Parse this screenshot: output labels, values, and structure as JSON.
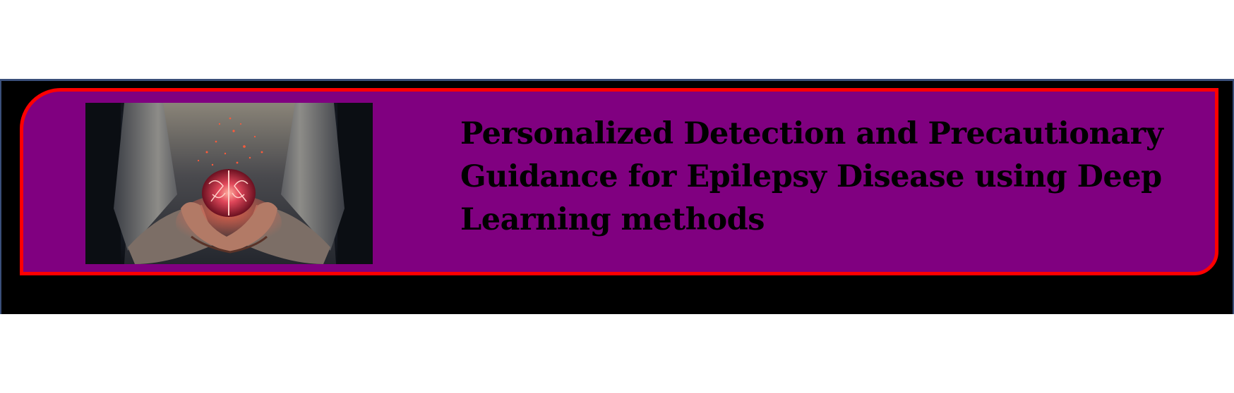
{
  "banner": {
    "title": "Personalized Detection and Precautionary Guidance for Epilepsy Disease using Deep Learning methods",
    "image_icon": "glowing-brain-in-hands-image"
  },
  "colors": {
    "page_background": "#ffffff",
    "frame": "#000000",
    "banner_fill": "#800080",
    "banner_border": "#ff0000",
    "title_text": "#000000"
  }
}
